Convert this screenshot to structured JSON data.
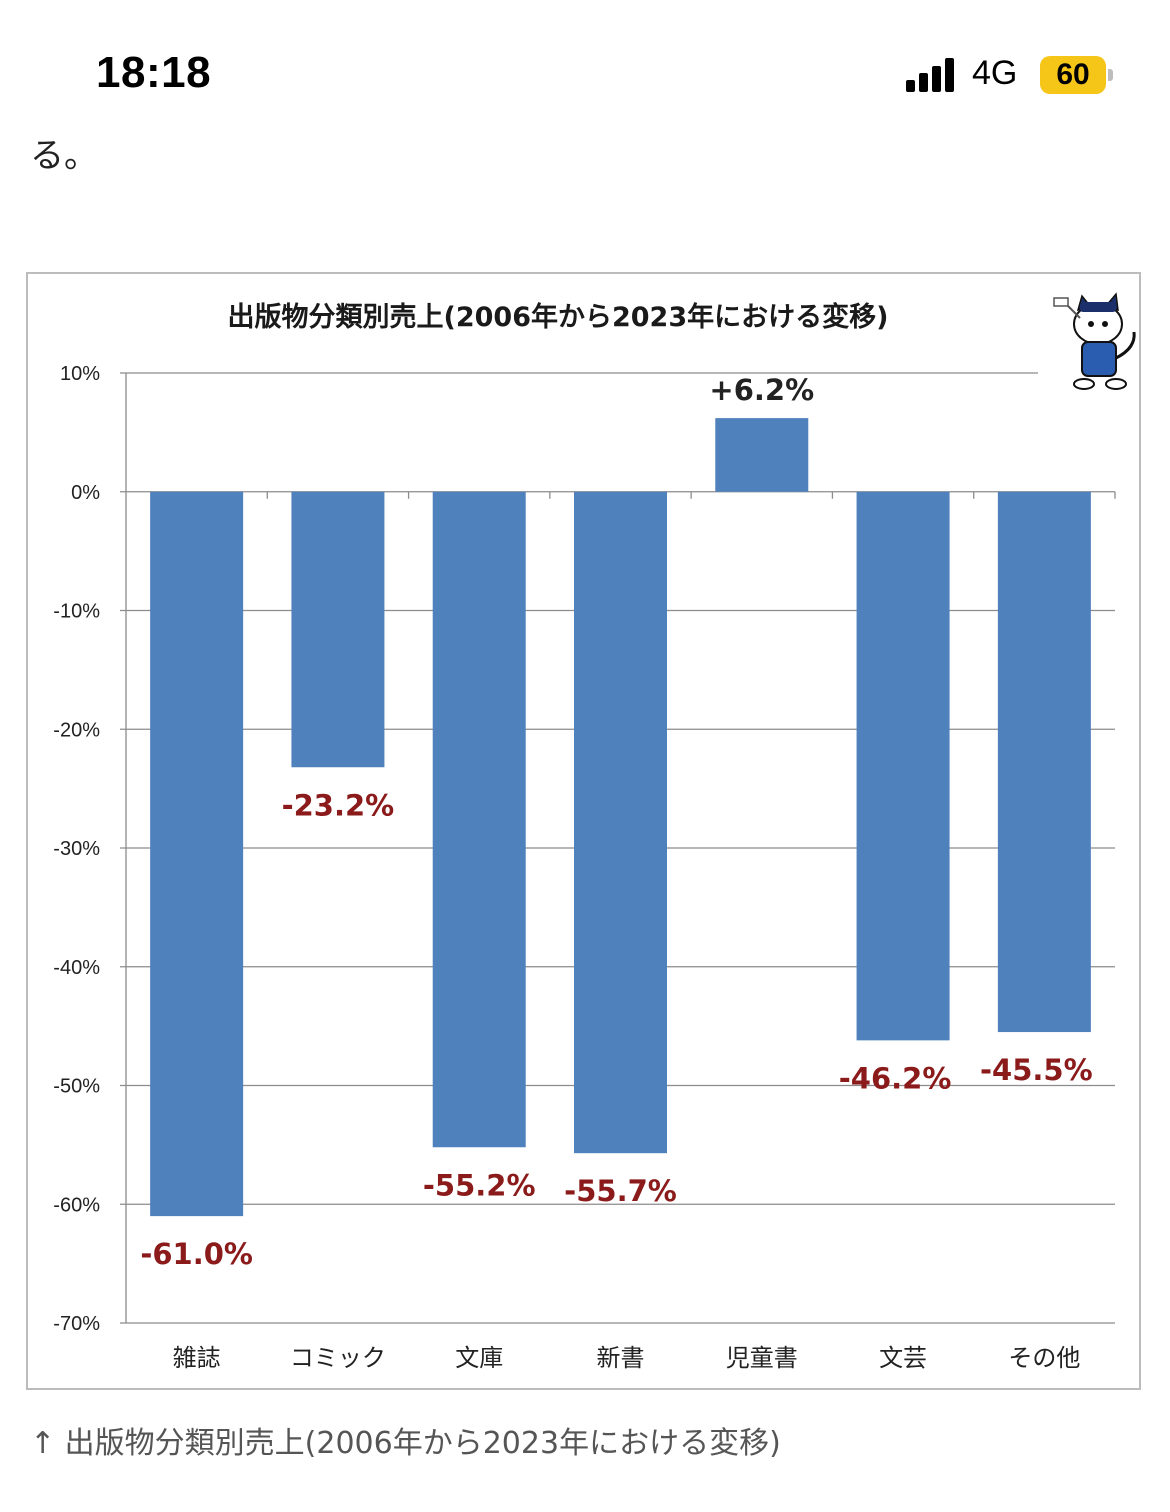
{
  "status_bar": {
    "time": "18:18",
    "network": "4G",
    "battery": "60",
    "icons": [
      "signal-icon",
      "battery-icon"
    ]
  },
  "article": {
    "prev_text": "る。",
    "caption": "↑ 出版物分類別売上(2006年から2023年における変移)"
  },
  "chart_data": {
    "type": "bar",
    "title": "出版物分類別売上(2006年から2023年における変移)",
    "categories": [
      "雑誌",
      "コミック",
      "文庫",
      "新書",
      "児童書",
      "文芸",
      "その他"
    ],
    "values": [
      -61.0,
      -23.2,
      -55.2,
      -55.7,
      6.2,
      -46.2,
      -45.5
    ],
    "value_labels": [
      "-61.0%",
      "-23.2%",
      "-55.2%",
      "-55.7%",
      "+6.2%",
      "-46.2%",
      "-45.5%"
    ],
    "y_ticks": [
      10,
      0,
      -10,
      -20,
      -30,
      -40,
      -50,
      -60,
      -70
    ],
    "y_tick_labels": [
      "10%",
      "0%",
      "-10%",
      "-20%",
      "-30%",
      "-40%",
      "-50%",
      "-60%",
      "-70%"
    ],
    "ylim": [
      -70,
      10
    ],
    "xlabel": "",
    "ylabel": "",
    "grid": true,
    "legend": "none",
    "colors": {
      "bar": "#4f81bd",
      "negative_label": "#8b1a1a",
      "positive_label": "#222222",
      "grid": "#8c8c8c"
    },
    "mascot_icon": "cat-mascot-icon"
  }
}
